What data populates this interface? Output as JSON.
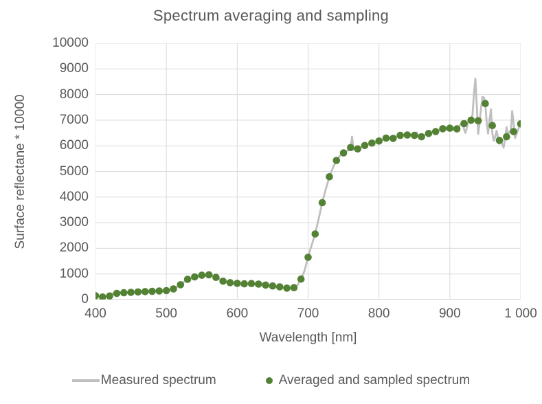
{
  "colors": {
    "measured_line": "#bfbfbf",
    "sampled_dot": "#548235",
    "gridline": "#d9d9d9",
    "axis_line": "#a6a6a6",
    "text": "#595959"
  },
  "legend": {
    "items": [
      {
        "label": "Measured spectrum",
        "marker": "line"
      },
      {
        "label": "Averaged and sampled spectrum",
        "marker": "dot"
      }
    ]
  },
  "chart_data": {
    "type": "line",
    "title": "Spectrum averaging and sampling",
    "xlabel": "Wavelength [nm]",
    "ylabel": "Surface reflectane * 10000",
    "xlim": [
      400,
      1000
    ],
    "ylim": [
      0,
      10000
    ],
    "grid": true,
    "legend_position": "bottom",
    "x_ticks": [
      {
        "value": 400,
        "label": "400"
      },
      {
        "value": 500,
        "label": "500"
      },
      {
        "value": 600,
        "label": "600"
      },
      {
        "value": 700,
        "label": "700"
      },
      {
        "value": 800,
        "label": "800"
      },
      {
        "value": 900,
        "label": "900"
      },
      {
        "value": 1000,
        "label": "1 000"
      }
    ],
    "y_ticks": [
      {
        "value": 0,
        "label": "0"
      },
      {
        "value": 1000,
        "label": "1000"
      },
      {
        "value": 2000,
        "label": "2000"
      },
      {
        "value": 3000,
        "label": "3000"
      },
      {
        "value": 4000,
        "label": "4000"
      },
      {
        "value": 5000,
        "label": "5000"
      },
      {
        "value": 6000,
        "label": "6000"
      },
      {
        "value": 7000,
        "label": "7000"
      },
      {
        "value": 8000,
        "label": "8000"
      },
      {
        "value": 9000,
        "label": "9000"
      },
      {
        "value": 10000,
        "label": "10000"
      }
    ],
    "series": [
      {
        "name": "Measured spectrum",
        "type": "line",
        "color": "#bfbfbf",
        "points": [
          [
            400,
            160
          ],
          [
            403,
            120
          ],
          [
            406,
            95
          ],
          [
            409,
            92
          ],
          [
            412,
            105
          ],
          [
            415,
            125
          ],
          [
            418,
            155
          ],
          [
            421,
            200
          ],
          [
            424,
            228
          ],
          [
            427,
            243
          ],
          [
            430,
            252
          ],
          [
            435,
            261
          ],
          [
            440,
            268
          ],
          [
            445,
            276
          ],
          [
            450,
            284
          ],
          [
            455,
            291
          ],
          [
            460,
            298
          ],
          [
            465,
            305
          ],
          [
            470,
            312
          ],
          [
            475,
            317
          ],
          [
            480,
            323
          ],
          [
            485,
            330
          ],
          [
            490,
            337
          ],
          [
            495,
            343
          ],
          [
            500,
            350
          ],
          [
            505,
            378
          ],
          [
            510,
            425
          ],
          [
            515,
            500
          ],
          [
            520,
            590
          ],
          [
            525,
            695
          ],
          [
            530,
            792
          ],
          [
            535,
            845
          ],
          [
            540,
            890
          ],
          [
            545,
            926
          ],
          [
            550,
            950
          ],
          [
            555,
            963
          ],
          [
            560,
            966
          ],
          [
            565,
            942
          ],
          [
            570,
            870
          ],
          [
            575,
            790
          ],
          [
            580,
            717
          ],
          [
            585,
            686
          ],
          [
            590,
            662
          ],
          [
            595,
            645
          ],
          [
            600,
            633
          ],
          [
            605,
            621
          ],
          [
            610,
            614
          ],
          [
            615,
            619
          ],
          [
            620,
            624
          ],
          [
            625,
            616
          ],
          [
            630,
            604
          ],
          [
            635,
            585
          ],
          [
            640,
            566
          ],
          [
            645,
            548
          ],
          [
            650,
            532
          ],
          [
            655,
            515
          ],
          [
            660,
            500
          ],
          [
            665,
            470
          ],
          [
            670,
            440
          ],
          [
            675,
            446
          ],
          [
            680,
            470
          ],
          [
            685,
            560
          ],
          [
            690,
            800
          ],
          [
            695,
            1120
          ],
          [
            700,
            1660
          ],
          [
            705,
            2120
          ],
          [
            710,
            2570
          ],
          [
            715,
            3160
          ],
          [
            720,
            3790
          ],
          [
            725,
            4310
          ],
          [
            730,
            4790
          ],
          [
            735,
            5140
          ],
          [
            740,
            5440
          ],
          [
            745,
            5610
          ],
          [
            750,
            5725
          ],
          [
            755,
            5805
          ],
          [
            758,
            5850
          ],
          [
            760,
            5905
          ],
          [
            762,
            6360
          ],
          [
            764,
            5860
          ],
          [
            767,
            5858
          ],
          [
            770,
            5885
          ],
          [
            775,
            5945
          ],
          [
            780,
            6015
          ],
          [
            785,
            6065
          ],
          [
            790,
            6105
          ],
          [
            795,
            6145
          ],
          [
            800,
            6185
          ],
          [
            805,
            6245
          ],
          [
            810,
            6305
          ],
          [
            815,
            6285
          ],
          [
            820,
            6295
          ],
          [
            825,
            6355
          ],
          [
            830,
            6405
          ],
          [
            835,
            6435
          ],
          [
            840,
            6425
          ],
          [
            845,
            6415
          ],
          [
            850,
            6405
          ],
          [
            853,
            6520
          ],
          [
            856,
            6380
          ],
          [
            860,
            6355
          ],
          [
            865,
            6425
          ],
          [
            870,
            6485
          ],
          [
            875,
            6525
          ],
          [
            880,
            6555
          ],
          [
            885,
            6605
          ],
          [
            890,
            6665
          ],
          [
            895,
            6675
          ],
          [
            900,
            6685
          ],
          [
            903,
            6600
          ],
          [
            906,
            6710
          ],
          [
            909,
            6665
          ],
          [
            912,
            6725
          ],
          [
            915,
            6825
          ],
          [
            918,
            6875
          ],
          [
            920,
            6645
          ],
          [
            922,
            6505
          ],
          [
            924,
            6705
          ],
          [
            926,
            6955
          ],
          [
            928,
            7055
          ],
          [
            930,
            7005
          ],
          [
            932,
            7205
          ],
          [
            934,
            8010
          ],
          [
            936,
            8620
          ],
          [
            938,
            7600
          ],
          [
            940,
            6465
          ],
          [
            942,
            6905
          ],
          [
            944,
            7455
          ],
          [
            946,
            7905
          ],
          [
            948,
            7885
          ],
          [
            950,
            7665
          ],
          [
            952,
            6905
          ],
          [
            954,
            6475
          ],
          [
            956,
            7005
          ],
          [
            958,
            7425
          ],
          [
            960,
            6485
          ],
          [
            962,
            6205
          ],
          [
            964,
            6355
          ],
          [
            966,
            6585
          ],
          [
            968,
            6305
          ],
          [
            970,
            6085
          ],
          [
            972,
            6255
          ],
          [
            974,
            6055
          ],
          [
            976,
            5930
          ],
          [
            978,
            6305
          ],
          [
            980,
            6725
          ],
          [
            982,
            6405
          ],
          [
            984,
            6555
          ],
          [
            986,
            6525
          ],
          [
            988,
            7360
          ],
          [
            990,
            6855
          ],
          [
            992,
            6305
          ],
          [
            994,
            6455
          ],
          [
            996,
            6605
          ],
          [
            998,
            6755
          ],
          [
            1000,
            6865
          ]
        ]
      },
      {
        "name": "Averaged and sampled spectrum",
        "type": "scatter",
        "color": "#548235",
        "x_start": 400,
        "x_step": 10,
        "values": [
          150,
          100,
          140,
          240,
          265,
          282,
          297,
          312,
          322,
          336,
          348,
          415,
          580,
          790,
          885,
          948,
          965,
          865,
          715,
          660,
          632,
          613,
          624,
          604,
          566,
          532,
          495,
          445,
          465,
          800,
          1650,
          2560,
          3780,
          4790,
          5430,
          5720,
          5930,
          5880,
          6010,
          6105,
          6185,
          6300,
          6290,
          6405,
          6420,
          6405,
          6350,
          6480,
          6555,
          6665,
          6685,
          6660,
          6865,
          7000,
          6975,
          7650,
          6790,
          6210,
          6350,
          6555,
          6855
        ]
      }
    ]
  }
}
